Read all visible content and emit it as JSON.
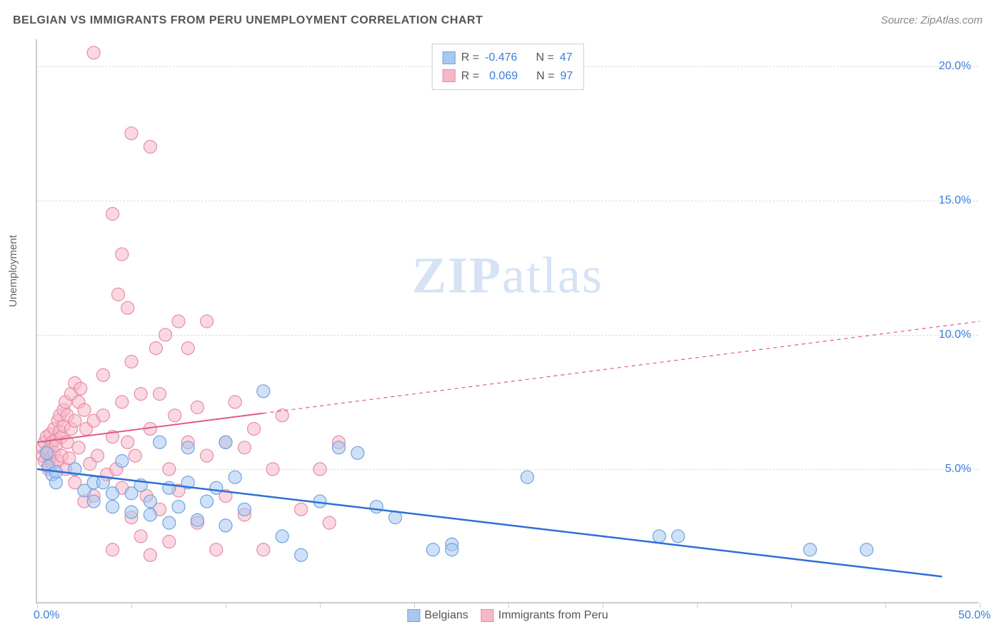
{
  "header": {
    "title": "BELGIAN VS IMMIGRANTS FROM PERU UNEMPLOYMENT CORRELATION CHART",
    "source": "Source: ZipAtlas.com"
  },
  "watermark": {
    "zip": "ZIP",
    "atlas": "atlas"
  },
  "chart": {
    "type": "scatter",
    "ylabel": "Unemployment",
    "background_color": "#ffffff",
    "grid_color": "#dddddd",
    "axis_color": "#cccccc",
    "tick_label_color": "#3b7dd8",
    "xlim": [
      0,
      50
    ],
    "ylim": [
      0,
      21
    ],
    "xticks": [
      0,
      5,
      10,
      15,
      20,
      25,
      30,
      35,
      40,
      45,
      50
    ],
    "xtick_labels": {
      "0": "0.0%",
      "50": "50.0%"
    },
    "yticks": [
      5,
      10,
      15,
      20
    ],
    "ytick_labels": {
      "5": "5.0%",
      "10": "10.0%",
      "15": "15.0%",
      "20": "20.0%"
    },
    "series": [
      {
        "name": "Belgians",
        "legend_label": "Belgians",
        "color_fill": "#a8c8f0",
        "color_stroke": "#6fa3e0",
        "r_label": "R =",
        "r_value": "-0.476",
        "n_label": "N =",
        "n_value": "47",
        "marker_radius": 9,
        "marker_opacity": 0.55,
        "trend": {
          "x1": 0,
          "y1": 5.0,
          "x2": 48,
          "y2": 1.0,
          "solid_until_x": 48,
          "stroke": "#2e6fd6",
          "width": 2.5
        },
        "points": [
          [
            0.5,
            5.6
          ],
          [
            0.6,
            5.1
          ],
          [
            0.8,
            4.8
          ],
          [
            1,
            4.5
          ],
          [
            1,
            4.9
          ],
          [
            2,
            5.0
          ],
          [
            2.5,
            4.2
          ],
          [
            3,
            4.5
          ],
          [
            3,
            3.8
          ],
          [
            3.5,
            4.5
          ],
          [
            4,
            4.1
          ],
          [
            4,
            3.6
          ],
          [
            4.5,
            5.3
          ],
          [
            5,
            4.1
          ],
          [
            5,
            3.4
          ],
          [
            5.5,
            4.4
          ],
          [
            6,
            3.8
          ],
          [
            6,
            3.3
          ],
          [
            6.5,
            6.0
          ],
          [
            7,
            4.3
          ],
          [
            7,
            3.0
          ],
          [
            7.5,
            3.6
          ],
          [
            8,
            4.5
          ],
          [
            8,
            5.8
          ],
          [
            8.5,
            3.1
          ],
          [
            9,
            3.8
          ],
          [
            9.5,
            4.3
          ],
          [
            10,
            6.0
          ],
          [
            10,
            2.9
          ],
          [
            10.5,
            4.7
          ],
          [
            11,
            3.5
          ],
          [
            12,
            7.9
          ],
          [
            13,
            2.5
          ],
          [
            14,
            1.8
          ],
          [
            15,
            3.8
          ],
          [
            16,
            5.8
          ],
          [
            17,
            5.6
          ],
          [
            18,
            3.6
          ],
          [
            19,
            3.2
          ],
          [
            21,
            2.0
          ],
          [
            22,
            2.2
          ],
          [
            22,
            2.0
          ],
          [
            26,
            4.7
          ],
          [
            33,
            2.5
          ],
          [
            34,
            2.5
          ],
          [
            41,
            2.0
          ],
          [
            44,
            2.0
          ]
        ]
      },
      {
        "name": "Immigrants from Peru",
        "legend_label": "Immigrants from Peru",
        "color_fill": "#f5b8c8",
        "color_stroke": "#e88ca5",
        "r_label": "R =",
        "r_value": "0.069",
        "n_label": "N =",
        "n_value": "97",
        "marker_radius": 9,
        "marker_opacity": 0.55,
        "trend": {
          "x1": 0,
          "y1": 6.0,
          "x2": 50,
          "y2": 10.5,
          "solid_until_x": 12,
          "stroke": "#e05a85",
          "width": 2
        },
        "points": [
          [
            0.3,
            5.5
          ],
          [
            0.3,
            5.8
          ],
          [
            0.4,
            5.3
          ],
          [
            0.4,
            6.0
          ],
          [
            0.5,
            5.6
          ],
          [
            0.5,
            6.2
          ],
          [
            0.6,
            5.0
          ],
          [
            0.6,
            5.7
          ],
          [
            0.7,
            6.3
          ],
          [
            0.7,
            5.4
          ],
          [
            0.8,
            6.0
          ],
          [
            0.8,
            5.2
          ],
          [
            0.9,
            6.5
          ],
          [
            0.9,
            5.6
          ],
          [
            1.0,
            6.1
          ],
          [
            1.0,
            5.9
          ],
          [
            1.1,
            5.3
          ],
          [
            1.1,
            6.8
          ],
          [
            1.2,
            6.4
          ],
          [
            1.2,
            7.0
          ],
          [
            1.3,
            6.2
          ],
          [
            1.3,
            5.5
          ],
          [
            1.4,
            7.2
          ],
          [
            1.4,
            6.6
          ],
          [
            1.5,
            5.0
          ],
          [
            1.5,
            7.5
          ],
          [
            1.6,
            6.0
          ],
          [
            1.6,
            7.0
          ],
          [
            1.7,
            5.4
          ],
          [
            1.8,
            7.8
          ],
          [
            1.8,
            6.5
          ],
          [
            2.0,
            8.2
          ],
          [
            2.0,
            6.8
          ],
          [
            2.0,
            4.5
          ],
          [
            2.2,
            7.5
          ],
          [
            2.2,
            5.8
          ],
          [
            2.3,
            8.0
          ],
          [
            2.5,
            7.2
          ],
          [
            2.5,
            3.8
          ],
          [
            2.6,
            6.5
          ],
          [
            2.8,
            5.2
          ],
          [
            3.0,
            6.8
          ],
          [
            3.0,
            4.0
          ],
          [
            3.0,
            20.5
          ],
          [
            3.2,
            5.5
          ],
          [
            3.5,
            7.0
          ],
          [
            3.5,
            8.5
          ],
          [
            3.7,
            4.8
          ],
          [
            4.0,
            6.2
          ],
          [
            4.0,
            2.0
          ],
          [
            4.0,
            14.5
          ],
          [
            4.2,
            5.0
          ],
          [
            4.3,
            11.5
          ],
          [
            4.5,
            7.5
          ],
          [
            4.5,
            4.3
          ],
          [
            4.5,
            13.0
          ],
          [
            4.8,
            6.0
          ],
          [
            4.8,
            11.0
          ],
          [
            5.0,
            3.2
          ],
          [
            5.0,
            9.0
          ],
          [
            5.0,
            17.5
          ],
          [
            5.2,
            5.5
          ],
          [
            5.5,
            2.5
          ],
          [
            5.5,
            7.8
          ],
          [
            5.8,
            4.0
          ],
          [
            6.0,
            6.5
          ],
          [
            6.0,
            17.0
          ],
          [
            6.0,
            1.8
          ],
          [
            6.3,
            9.5
          ],
          [
            6.5,
            3.5
          ],
          [
            6.5,
            7.8
          ],
          [
            6.8,
            10.0
          ],
          [
            7.0,
            5.0
          ],
          [
            7.0,
            2.3
          ],
          [
            7.3,
            7.0
          ],
          [
            7.5,
            10.5
          ],
          [
            7.5,
            4.2
          ],
          [
            8.0,
            6.0
          ],
          [
            8.0,
            9.5
          ],
          [
            8.5,
            3.0
          ],
          [
            8.5,
            7.3
          ],
          [
            9.0,
            5.5
          ],
          [
            9.0,
            10.5
          ],
          [
            9.5,
            2.0
          ],
          [
            10.0,
            6.0
          ],
          [
            10.0,
            4.0
          ],
          [
            10.5,
            7.5
          ],
          [
            11.0,
            5.8
          ],
          [
            11.0,
            3.3
          ],
          [
            11.5,
            6.5
          ],
          [
            12.0,
            2.0
          ],
          [
            12.5,
            5.0
          ],
          [
            13.0,
            7.0
          ],
          [
            14.0,
            3.5
          ],
          [
            15.0,
            5.0
          ],
          [
            15.5,
            3.0
          ],
          [
            16.0,
            6.0
          ]
        ]
      }
    ]
  }
}
